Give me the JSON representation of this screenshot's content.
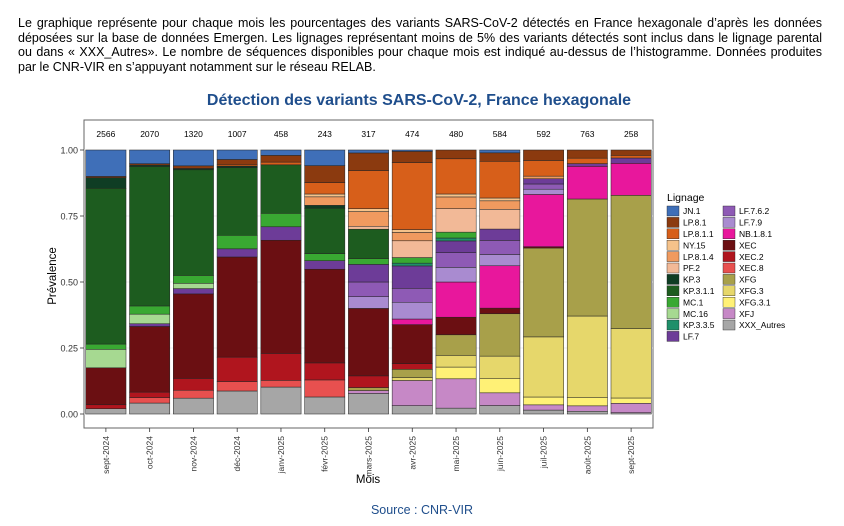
{
  "intro_text": "Le graphique représente pour chaque mois les pourcentages des variants SARS-CoV-2 détectés en France hexagonale d’après les données déposées sur la base de données Emergen. Les lignages représentant moins de 5% des variants détectés sont inclus dans le lignage parental ou dans « XXX_Autres». Le nombre de séquences disponibles pour chaque mois est indiqué au-dessus de l’histogramme. Données produites par le CNR-VIR en s’appuyant notamment sur le réseau RELAB.",
  "source": "Source : CNR-VIR",
  "colors": {
    "title": "#1f4e8c",
    "source": "#1f4e8c"
  },
  "chart_data": {
    "type": "bar",
    "stacked": true,
    "title": "Détection des variants SARS-CoV-2, France hexagonale",
    "xlabel": "Mois",
    "ylabel": "Prévalence",
    "ylim": [
      0,
      1
    ],
    "yticks": [
      "0.00",
      "0.25",
      "0.50",
      "0.75",
      "1.00"
    ],
    "legend_title": "Lignage",
    "legend_position": "right",
    "categories": [
      "sept-2024",
      "oct-2024",
      "nov-2024",
      "déc-2024",
      "janv-2025",
      "févr-2025",
      "mars-2025",
      "avr-2025",
      "mai-2025",
      "juin-2025",
      "juil-2025",
      "août-2025",
      "sept-2025"
    ],
    "counts": [
      "2566",
      "2070",
      "1320",
      "1007",
      "458",
      "243",
      "317",
      "474",
      "480",
      "584",
      "592",
      "763",
      "258"
    ],
    "series": [
      {
        "name": "XXX_Autres",
        "color": "#a6a6a6",
        "values": [
          0.02,
          0.04,
          0.06,
          0.085,
          0.1,
          0.06,
          0.07,
          0.03,
          0.02,
          0.03,
          0.015,
          0.01,
          0.005
        ]
      },
      {
        "name": "XFJ",
        "color": "#c688c6",
        "values": [
          0,
          0,
          0,
          0,
          0,
          0,
          0.01,
          0.09,
          0.1,
          0.045,
          0.02,
          0.02,
          0.035
        ]
      },
      {
        "name": "XFG.3.1",
        "color": "#fff176",
        "values": [
          0,
          0,
          0,
          0,
          0,
          0,
          0,
          0,
          0.04,
          0.05,
          0.03,
          0.03,
          0.02
        ]
      },
      {
        "name": "XFG.3",
        "color": "#e6d76b",
        "values": [
          0,
          0,
          0,
          0,
          0,
          0,
          0,
          0.01,
          0.04,
          0.08,
          0.23,
          0.3,
          0.26
        ]
      },
      {
        "name": "XFG",
        "color": "#a8a04a",
        "values": [
          0,
          0,
          0,
          0,
          0,
          0,
          0.01,
          0.03,
          0.07,
          0.15,
          0.34,
          0.43,
          0.5
        ]
      },
      {
        "name": "XEC.8",
        "color": "#e8504f",
        "values": [
          0,
          0.02,
          0.03,
          0.035,
          0.025,
          0.06,
          0,
          0,
          0,
          0,
          0,
          0,
          0
        ]
      },
      {
        "name": "XEC.2",
        "color": "#b0151e",
        "values": [
          0.015,
          0.02,
          0.045,
          0.09,
          0.1,
          0.06,
          0.04,
          0.02,
          0,
          0,
          0,
          0,
          0
        ]
      },
      {
        "name": "XEC",
        "color": "#6b0f12",
        "values": [
          0.14,
          0.24,
          0.32,
          0.37,
          0.42,
          0.33,
          0.23,
          0.14,
          0.06,
          0.02,
          0.005,
          0,
          0
        ]
      },
      {
        "name": "NB.1.8.1",
        "color": "#e8179c",
        "values": [
          0,
          0,
          0,
          0,
          0,
          0,
          0,
          0.02,
          0.12,
          0.15,
          0.2,
          0.12,
          0.12
        ]
      },
      {
        "name": "LF.7.9",
        "color": "#a98bd0",
        "values": [
          0,
          0,
          0,
          0,
          0,
          0,
          0.04,
          0.06,
          0.05,
          0.04,
          0.02,
          0,
          0
        ]
      },
      {
        "name": "LF.7.6.2",
        "color": "#8e5ab5",
        "values": [
          0,
          0,
          0,
          0,
          0,
          0,
          0.05,
          0.05,
          0.05,
          0.05,
          0.02,
          0,
          0
        ]
      },
      {
        "name": "LF.7",
        "color": "#6d3c98",
        "values": [
          0,
          0.01,
          0.02,
          0.03,
          0.05,
          0.03,
          0.06,
          0.08,
          0.04,
          0.04,
          0.02,
          0.01,
          0.02
        ]
      },
      {
        "name": "KP.3.3.5",
        "color": "#1f8f6a",
        "values": [
          0,
          0,
          0,
          0,
          0,
          0,
          0,
          0.01,
          0.01,
          0,
          0,
          0,
          0
        ]
      },
      {
        "name": "MC.16",
        "color": "#a6d991",
        "values": [
          0.07,
          0.035,
          0.02,
          0,
          0,
          0,
          0,
          0,
          0,
          0,
          0,
          0,
          0
        ]
      },
      {
        "name": "MC.1",
        "color": "#39a832",
        "values": [
          0.02,
          0.03,
          0.03,
          0.05,
          0.05,
          0.025,
          0.02,
          0.02,
          0.02,
          0,
          0,
          0,
          0
        ]
      },
      {
        "name": "KP.3.1.1",
        "color": "#1d5c1f",
        "values": [
          0.59,
          0.51,
          0.4,
          0.25,
          0.18,
          0.16,
          0.1,
          0,
          0,
          0,
          0,
          0,
          0
        ]
      },
      {
        "name": "KP.3",
        "color": "#0f3d24",
        "values": [
          0.04,
          0.005,
          0.005,
          0.005,
          0,
          0.01,
          0,
          0,
          0,
          0,
          0,
          0,
          0
        ]
      },
      {
        "name": "PF.2",
        "color": "#f2b997",
        "values": [
          0,
          0,
          0,
          0,
          0,
          0,
          0.01,
          0.06,
          0.08,
          0.07,
          0,
          0,
          0
        ]
      },
      {
        "name": "LP.8.1.4",
        "color": "#f09a5f",
        "values": [
          0,
          0,
          0,
          0,
          0,
          0.03,
          0.05,
          0.03,
          0.04,
          0.03,
          0.01,
          0,
          0
        ]
      },
      {
        "name": "NY.15",
        "color": "#f5c28a",
        "values": [
          0,
          0,
          0,
          0,
          0,
          0.01,
          0.01,
          0.01,
          0.01,
          0.01,
          0,
          0,
          0
        ]
      },
      {
        "name": "LP.8.1.1",
        "color": "#d75f1a",
        "values": [
          0,
          0,
          0,
          0.005,
          0.01,
          0.04,
          0.13,
          0.24,
          0.12,
          0.13,
          0.06,
          0.02,
          0.01
        ]
      },
      {
        "name": "LP.8.1",
        "color": "#8b3a0f",
        "values": [
          0.005,
          0.005,
          0.01,
          0.02,
          0.025,
          0.06,
          0.06,
          0.04,
          0.03,
          0.03,
          0.04,
          0.03,
          0.02
        ]
      },
      {
        "name": "JN.1",
        "color": "#3f6fb8",
        "values": [
          0.1,
          0.05,
          0.06,
          0.035,
          0.02,
          0.055,
          0.01,
          0.005,
          0,
          0.01,
          0,
          0,
          0
        ]
      }
    ],
    "legend_order": [
      "JN.1",
      "LP.8.1",
      "LP.8.1.1",
      "NY.15",
      "LP.8.1.4",
      "PF.2",
      "KP.3",
      "KP.3.1.1",
      "MC.1",
      "MC.16",
      "KP.3.3.5",
      "LF.7",
      "LF.7.6.2",
      "LF.7.9",
      "NB.1.8.1",
      "XEC",
      "XEC.2",
      "XEC.8",
      "XFG",
      "XFG.3",
      "XFG.3.1",
      "XFJ",
      "XXX_Autres"
    ]
  }
}
